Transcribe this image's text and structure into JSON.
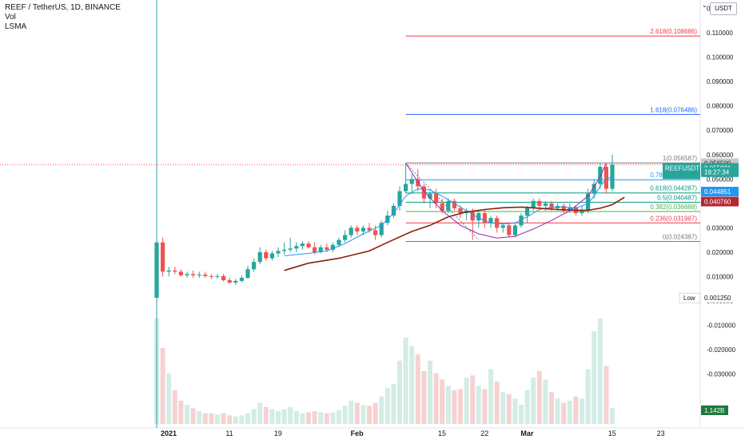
{
  "legend": {
    "title": "REEF / TetherUS, 1D, BINANCE",
    "line2": "Vol",
    "line3": "LSMA"
  },
  "currency": "USDT",
  "colors": {
    "up": "#26a69a",
    "down": "#ef5350",
    "vol_up": "#d3ece6",
    "vol_down": "#f5d2d1",
    "lsma": "#8c1e07",
    "blue_ma": "#2196f3",
    "cup": "#9c27b0",
    "fib_red": "#f23645",
    "fib_blue": "#2962ff",
    "fib_green": "#089981",
    "fib_gray": "#787b86"
  },
  "chart_data": {
    "type": "candlestick",
    "title": "REEF / TetherUS, 1D, BINANCE",
    "y_axis": {
      "range": [
        -0.034,
        0.126
      ],
      "ticks": [
        "0.120000",
        "0.110000",
        "0.100000",
        "0.090000",
        "0.080000",
        "0.070000",
        "0.060000",
        "0.050000",
        "0.040000",
        "0.030000",
        "0.020000",
        "0.010000",
        "0.000000",
        "-0.010000",
        "-0.020000",
        "-0.030000"
      ],
      "tick_values": [
        0.12,
        0.11,
        0.1,
        0.09,
        0.08,
        0.07,
        0.06,
        0.05,
        0.04,
        0.03,
        0.02,
        0.01,
        0.0,
        -0.01,
        -0.02,
        -0.03
      ]
    },
    "x_axis": {
      "ticks": [
        "2021",
        "11",
        "19",
        "Feb",
        "15",
        "22",
        "Mar",
        "15",
        "23"
      ],
      "tick_day_index": [
        0,
        10,
        18,
        31,
        45,
        52,
        59,
        73,
        81
      ]
    },
    "price_labels": {
      "top_gray": "0.056500",
      "current_symbol": "REEFUSDT",
      "current": "0.055921",
      "countdown": "19:27:34",
      "blue_level": "0.044851",
      "red_level": "0.040760",
      "low_label": "Low",
      "low": "0.001250",
      "volume": "1.142B"
    },
    "fib_levels": [
      {
        "label": "2.618(0.108686)",
        "value": 0.108686
      },
      {
        "label": "1.618(0.076486)",
        "value": 0.076486
      },
      {
        "label": "1(0.056587)",
        "value": 0.056587
      },
      {
        "label": "0.786(0.049696)",
        "value": 0.049696
      },
      {
        "label": "0.618(0.044287)",
        "value": 0.044287
      },
      {
        "label": "0.5(0.040487)",
        "value": 0.040487
      },
      {
        "label": "0.382(0.036688)",
        "value": 0.036688
      },
      {
        "label": "0.236(0.031987)",
        "value": 0.031987
      },
      {
        "label": "0(0.024387)",
        "value": 0.024387
      }
    ],
    "candles": [
      {
        "d": 0,
        "o": 0.0013,
        "h": 0.026,
        "l": 0.0013,
        "c": 0.024
      },
      {
        "d": 1,
        "o": 0.024,
        "h": 0.026,
        "l": 0.01,
        "c": 0.012
      },
      {
        "d": 2,
        "o": 0.012,
        "h": 0.014,
        "l": 0.01,
        "c": 0.0125
      },
      {
        "d": 3,
        "o": 0.0125,
        "h": 0.014,
        "l": 0.011,
        "c": 0.012
      },
      {
        "d": 4,
        "o": 0.012,
        "h": 0.013,
        "l": 0.01,
        "c": 0.0105
      },
      {
        "d": 5,
        "o": 0.0105,
        "h": 0.012,
        "l": 0.0095,
        "c": 0.011
      },
      {
        "d": 6,
        "o": 0.011,
        "h": 0.0125,
        "l": 0.0095,
        "c": 0.0105
      },
      {
        "d": 7,
        "o": 0.0105,
        "h": 0.012,
        "l": 0.0095,
        "c": 0.0108
      },
      {
        "d": 8,
        "o": 0.0108,
        "h": 0.012,
        "l": 0.0095,
        "c": 0.0102
      },
      {
        "d": 9,
        "o": 0.0102,
        "h": 0.011,
        "l": 0.009,
        "c": 0.01
      },
      {
        "d": 10,
        "o": 0.01,
        "h": 0.011,
        "l": 0.009,
        "c": 0.0102
      },
      {
        "d": 11,
        "o": 0.0102,
        "h": 0.011,
        "l": 0.008,
        "c": 0.0085
      },
      {
        "d": 12,
        "o": 0.0085,
        "h": 0.0095,
        "l": 0.007,
        "c": 0.0075
      },
      {
        "d": 13,
        "o": 0.0075,
        "h": 0.009,
        "l": 0.0065,
        "c": 0.0082
      },
      {
        "d": 14,
        "o": 0.0082,
        "h": 0.0105,
        "l": 0.0075,
        "c": 0.0095
      },
      {
        "d": 15,
        "o": 0.0095,
        "h": 0.0145,
        "l": 0.009,
        "c": 0.013
      },
      {
        "d": 16,
        "o": 0.013,
        "h": 0.0175,
        "l": 0.012,
        "c": 0.016
      },
      {
        "d": 17,
        "o": 0.016,
        "h": 0.022,
        "l": 0.015,
        "c": 0.02
      },
      {
        "d": 18,
        "o": 0.02,
        "h": 0.021,
        "l": 0.0165,
        "c": 0.0175
      },
      {
        "d": 19,
        "o": 0.0175,
        "h": 0.0205,
        "l": 0.0165,
        "c": 0.0195
      },
      {
        "d": 20,
        "o": 0.0195,
        "h": 0.022,
        "l": 0.018,
        "c": 0.0205
      },
      {
        "d": 21,
        "o": 0.0205,
        "h": 0.024,
        "l": 0.019,
        "c": 0.021
      },
      {
        "d": 22,
        "o": 0.021,
        "h": 0.026,
        "l": 0.02,
        "c": 0.0215
      },
      {
        "d": 23,
        "o": 0.0215,
        "h": 0.024,
        "l": 0.02,
        "c": 0.0225
      },
      {
        "d": 24,
        "o": 0.0225,
        "h": 0.0245,
        "l": 0.021,
        "c": 0.0235
      },
      {
        "d": 25,
        "o": 0.0235,
        "h": 0.0245,
        "l": 0.0215,
        "c": 0.022
      },
      {
        "d": 26,
        "o": 0.022,
        "h": 0.024,
        "l": 0.019,
        "c": 0.02
      },
      {
        "d": 27,
        "o": 0.02,
        "h": 0.023,
        "l": 0.0195,
        "c": 0.022
      },
      {
        "d": 28,
        "o": 0.022,
        "h": 0.0235,
        "l": 0.02,
        "c": 0.021
      },
      {
        "d": 29,
        "o": 0.021,
        "h": 0.024,
        "l": 0.02,
        "c": 0.023
      },
      {
        "d": 30,
        "o": 0.023,
        "h": 0.026,
        "l": 0.022,
        "c": 0.025
      },
      {
        "d": 31,
        "o": 0.025,
        "h": 0.029,
        "l": 0.024,
        "c": 0.027
      },
      {
        "d": 32,
        "o": 0.027,
        "h": 0.031,
        "l": 0.026,
        "c": 0.03
      },
      {
        "d": 33,
        "o": 0.03,
        "h": 0.031,
        "l": 0.027,
        "c": 0.0285
      },
      {
        "d": 34,
        "o": 0.0285,
        "h": 0.031,
        "l": 0.027,
        "c": 0.03
      },
      {
        "d": 35,
        "o": 0.03,
        "h": 0.032,
        "l": 0.028,
        "c": 0.029
      },
      {
        "d": 36,
        "o": 0.029,
        "h": 0.031,
        "l": 0.025,
        "c": 0.027
      },
      {
        "d": 37,
        "o": 0.027,
        "h": 0.033,
        "l": 0.026,
        "c": 0.032
      },
      {
        "d": 38,
        "o": 0.032,
        "h": 0.037,
        "l": 0.031,
        "c": 0.035
      },
      {
        "d": 39,
        "o": 0.035,
        "h": 0.04,
        "l": 0.034,
        "c": 0.039
      },
      {
        "d": 40,
        "o": 0.039,
        "h": 0.047,
        "l": 0.037,
        "c": 0.045
      },
      {
        "d": 41,
        "o": 0.045,
        "h": 0.0565,
        "l": 0.044,
        "c": 0.048
      },
      {
        "d": 42,
        "o": 0.048,
        "h": 0.052,
        "l": 0.044,
        "c": 0.05
      },
      {
        "d": 43,
        "o": 0.05,
        "h": 0.054,
        "l": 0.045,
        "c": 0.047
      },
      {
        "d": 44,
        "o": 0.047,
        "h": 0.048,
        "l": 0.04,
        "c": 0.042
      },
      {
        "d": 45,
        "o": 0.042,
        "h": 0.045,
        "l": 0.038,
        "c": 0.044
      },
      {
        "d": 46,
        "o": 0.044,
        "h": 0.046,
        "l": 0.038,
        "c": 0.04
      },
      {
        "d": 47,
        "o": 0.04,
        "h": 0.042,
        "l": 0.036,
        "c": 0.037
      },
      {
        "d": 48,
        "o": 0.037,
        "h": 0.042,
        "l": 0.036,
        "c": 0.041
      },
      {
        "d": 49,
        "o": 0.041,
        "h": 0.042,
        "l": 0.037,
        "c": 0.038
      },
      {
        "d": 50,
        "o": 0.038,
        "h": 0.039,
        "l": 0.034,
        "c": 0.036
      },
      {
        "d": 51,
        "o": 0.036,
        "h": 0.038,
        "l": 0.033,
        "c": 0.037
      },
      {
        "d": 52,
        "o": 0.037,
        "h": 0.038,
        "l": 0.025,
        "c": 0.033
      },
      {
        "d": 53,
        "o": 0.033,
        "h": 0.037,
        "l": 0.03,
        "c": 0.036
      },
      {
        "d": 54,
        "o": 0.036,
        "h": 0.0375,
        "l": 0.03,
        "c": 0.032
      },
      {
        "d": 55,
        "o": 0.032,
        "h": 0.035,
        "l": 0.03,
        "c": 0.034
      },
      {
        "d": 56,
        "o": 0.034,
        "h": 0.035,
        "l": 0.028,
        "c": 0.03
      },
      {
        "d": 57,
        "o": 0.03,
        "h": 0.032,
        "l": 0.028,
        "c": 0.031
      },
      {
        "d": 58,
        "o": 0.031,
        "h": 0.032,
        "l": 0.026,
        "c": 0.027
      },
      {
        "d": 59,
        "o": 0.027,
        "h": 0.032,
        "l": 0.026,
        "c": 0.031
      },
      {
        "d": 60,
        "o": 0.031,
        "h": 0.036,
        "l": 0.03,
        "c": 0.035
      },
      {
        "d": 61,
        "o": 0.035,
        "h": 0.039,
        "l": 0.032,
        "c": 0.038
      },
      {
        "d": 62,
        "o": 0.038,
        "h": 0.042,
        "l": 0.037,
        "c": 0.041
      },
      {
        "d": 63,
        "o": 0.041,
        "h": 0.042,
        "l": 0.038,
        "c": 0.039
      },
      {
        "d": 64,
        "o": 0.039,
        "h": 0.041,
        "l": 0.037,
        "c": 0.04
      },
      {
        "d": 65,
        "o": 0.04,
        "h": 0.041,
        "l": 0.037,
        "c": 0.038
      },
      {
        "d": 66,
        "o": 0.038,
        "h": 0.04,
        "l": 0.037,
        "c": 0.039
      },
      {
        "d": 67,
        "o": 0.039,
        "h": 0.04,
        "l": 0.036,
        "c": 0.037
      },
      {
        "d": 68,
        "o": 0.037,
        "h": 0.04,
        "l": 0.036,
        "c": 0.0385
      },
      {
        "d": 69,
        "o": 0.0385,
        "h": 0.039,
        "l": 0.035,
        "c": 0.036
      },
      {
        "d": 70,
        "o": 0.036,
        "h": 0.039,
        "l": 0.035,
        "c": 0.037
      },
      {
        "d": 71,
        "o": 0.037,
        "h": 0.046,
        "l": 0.036,
        "c": 0.044
      },
      {
        "d": 72,
        "o": 0.044,
        "h": 0.05,
        "l": 0.042,
        "c": 0.048
      },
      {
        "d": 73,
        "o": 0.048,
        "h": 0.0565,
        "l": 0.046,
        "c": 0.055
      },
      {
        "d": 74,
        "o": 0.055,
        "h": 0.056,
        "l": 0.044,
        "c": 0.046
      },
      {
        "d": 75,
        "o": 0.046,
        "h": 0.06,
        "l": 0.045,
        "c": 0.0559
      }
    ],
    "volume_pct": [
      1.0,
      0.72,
      0.48,
      0.32,
      0.22,
      0.18,
      0.15,
      0.12,
      0.1,
      0.1,
      0.09,
      0.1,
      0.08,
      0.07,
      0.08,
      0.1,
      0.14,
      0.2,
      0.16,
      0.14,
      0.12,
      0.14,
      0.16,
      0.12,
      0.1,
      0.11,
      0.12,
      0.11,
      0.1,
      0.11,
      0.13,
      0.17,
      0.22,
      0.2,
      0.18,
      0.17,
      0.2,
      0.26,
      0.34,
      0.38,
      0.6,
      0.82,
      0.74,
      0.66,
      0.5,
      0.6,
      0.48,
      0.42,
      0.36,
      0.32,
      0.33,
      0.44,
      0.46,
      0.36,
      0.33,
      0.52,
      0.4,
      0.3,
      0.28,
      0.24,
      0.18,
      0.32,
      0.44,
      0.5,
      0.42,
      0.3,
      0.24,
      0.2,
      0.22,
      0.26,
      0.24,
      0.52,
      0.88,
      1.0,
      0.55,
      0.15
    ],
    "lsma_points": [
      [
        21,
        0.0125
      ],
      [
        25,
        0.0155
      ],
      [
        30,
        0.0175
      ],
      [
        35,
        0.0205
      ],
      [
        38,
        0.024
      ],
      [
        42,
        0.0285
      ],
      [
        45,
        0.031
      ],
      [
        48,
        0.0345
      ],
      [
        51,
        0.0365
      ],
      [
        54,
        0.0375
      ],
      [
        57,
        0.0382
      ],
      [
        60,
        0.0385
      ],
      [
        63,
        0.038
      ],
      [
        66,
        0.0375
      ],
      [
        69,
        0.0372
      ],
      [
        71,
        0.0372
      ],
      [
        73,
        0.038
      ],
      [
        75,
        0.0395
      ],
      [
        77,
        0.0425
      ]
    ],
    "blue_ma_points": [
      [
        21,
        0.0185
      ],
      [
        25,
        0.0195
      ],
      [
        28,
        0.0205
      ],
      [
        31,
        0.0235
      ],
      [
        34,
        0.0275
      ],
      [
        37,
        0.031
      ],
      [
        39,
        0.036
      ],
      [
        41,
        0.043
      ],
      [
        43,
        0.046
      ],
      [
        45,
        0.0455
      ],
      [
        47,
        0.043
      ],
      [
        49,
        0.04
      ],
      [
        51,
        0.037
      ],
      [
        53,
        0.034
      ],
      [
        55,
        0.032
      ],
      [
        57,
        0.0315
      ],
      [
        59,
        0.032
      ],
      [
        61,
        0.0345
      ],
      [
        63,
        0.0375
      ],
      [
        65,
        0.0385
      ],
      [
        67,
        0.0385
      ],
      [
        69,
        0.038
      ],
      [
        71,
        0.04
      ],
      [
        72,
        0.043
      ],
      [
        73,
        0.047
      ],
      [
        74,
        0.05
      ],
      [
        75,
        0.051
      ]
    ],
    "cup_points": [
      [
        41,
        0.0565
      ],
      [
        44,
        0.045
      ],
      [
        47,
        0.037
      ],
      [
        50,
        0.031
      ],
      [
        53,
        0.0275
      ],
      [
        56,
        0.0258
      ],
      [
        59,
        0.0265
      ],
      [
        62,
        0.0295
      ],
      [
        65,
        0.033
      ],
      [
        68,
        0.037
      ],
      [
        71,
        0.043
      ],
      [
        73,
        0.051
      ],
      [
        74,
        0.0565
      ]
    ],
    "fib_start_day": 41,
    "zigzag_points": [
      [
        41,
        0.0565
      ],
      [
        53,
        0.025
      ]
    ]
  }
}
